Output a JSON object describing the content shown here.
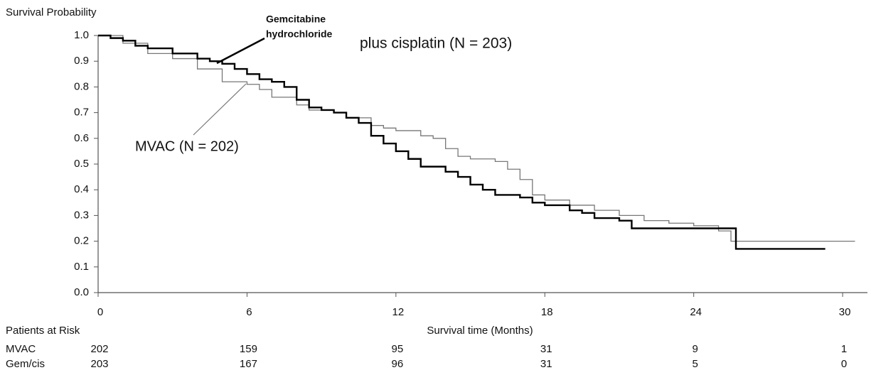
{
  "chart_data": {
    "type": "line",
    "step": "post",
    "ylabel": "Survival Probability",
    "xlabel": "Survival time (Months)",
    "xlim": [
      0,
      31
    ],
    "ylim": [
      0,
      1
    ],
    "xticks": [
      0,
      6,
      12,
      18,
      24,
      30
    ],
    "yticks": [
      {
        "value": 0,
        "label": "0.0"
      },
      0.1,
      0.2,
      0.3,
      0.4,
      0.5,
      0.6,
      0.7,
      0.8,
      0.9,
      {
        "value": 1,
        "label": "1.0"
      }
    ],
    "gem_label_lines": [
      "Gemcitabine",
      "hydrochloride"
    ],
    "gem_label_rest": "plus cisplatin (N = 203)",
    "mvac_label": "MVAC (N = 202)",
    "risk_title": "Patients at Risk",
    "series": [
      {
        "name": "MVAC",
        "color": "#777777",
        "x": [
          0,
          1,
          2,
          3,
          4,
          5,
          6,
          6.5,
          7,
          8,
          8.5,
          9.5,
          10,
          11,
          11.5,
          12,
          13,
          13.5,
          14,
          14.5,
          15,
          16,
          16.5,
          17,
          17.5,
          18,
          19,
          20,
          21,
          22,
          23,
          24,
          25,
          25.5,
          30.5
        ],
        "values": [
          1.0,
          0.97,
          0.93,
          0.91,
          0.87,
          0.82,
          0.81,
          0.79,
          0.76,
          0.73,
          0.71,
          0.7,
          0.68,
          0.65,
          0.64,
          0.63,
          0.61,
          0.6,
          0.56,
          0.53,
          0.52,
          0.51,
          0.48,
          0.44,
          0.38,
          0.36,
          0.34,
          0.32,
          0.3,
          0.28,
          0.27,
          0.26,
          0.24,
          0.2,
          0.2
        ],
        "at_risk": [
          202,
          159,
          95,
          31,
          9,
          1
        ]
      },
      {
        "name": "Gem/cis",
        "color": "#000000",
        "x": [
          0,
          0.5,
          1,
          1.5,
          2,
          3,
          4,
          4.5,
          5,
          5.5,
          6,
          6.5,
          7,
          7.5,
          8,
          8.5,
          9,
          9.5,
          10,
          10.5,
          11,
          11.5,
          12,
          12.5,
          13,
          14,
          14.5,
          15,
          15.5,
          16,
          17,
          17.5,
          18,
          19,
          19.5,
          20,
          21,
          21.5,
          24,
          25.7,
          29.3
        ],
        "values": [
          1.0,
          0.99,
          0.98,
          0.96,
          0.95,
          0.93,
          0.91,
          0.9,
          0.89,
          0.87,
          0.85,
          0.83,
          0.82,
          0.8,
          0.75,
          0.72,
          0.71,
          0.7,
          0.68,
          0.66,
          0.61,
          0.58,
          0.55,
          0.52,
          0.49,
          0.47,
          0.45,
          0.42,
          0.4,
          0.38,
          0.37,
          0.35,
          0.34,
          0.32,
          0.31,
          0.29,
          0.28,
          0.25,
          0.25,
          0.17,
          0.17
        ],
        "at_risk": [
          203,
          167,
          96,
          31,
          5,
          0
        ]
      }
    ]
  }
}
